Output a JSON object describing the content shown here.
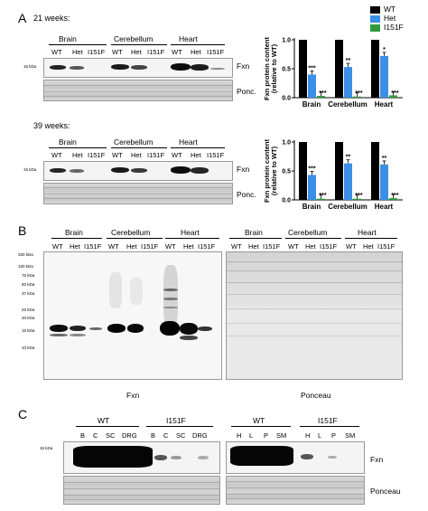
{
  "panelA": {
    "letter": "A",
    "sub1": "21 weeks:",
    "sub2": "39 weeks:",
    "tissues": [
      "Brain",
      "Cerebellum",
      "Heart"
    ],
    "lanes": [
      "WT",
      "Het",
      "I151F"
    ],
    "kda_marker": "15 kDa",
    "fxn_label": "Fxn",
    "ponc_label": "Ponc."
  },
  "legend": [
    {
      "name": "WT",
      "color": "#000000"
    },
    {
      "name": "Het",
      "color": "#3b8fe6"
    },
    {
      "name": "I151F",
      "color": "#2e9b3a"
    }
  ],
  "chart_data": [
    {
      "type": "bar",
      "title": "",
      "ylabel": "Fxn protein content (relative to WT)",
      "xlabel": "",
      "categories": [
        "Brain",
        "Cerebellum",
        "Heart"
      ],
      "series": [
        {
          "name": "WT",
          "values": [
            1.0,
            1.0,
            1.0
          ],
          "sig": [
            "",
            "",
            ""
          ]
        },
        {
          "name": "Het",
          "values": [
            0.4,
            0.53,
            0.72
          ],
          "sig": [
            "***",
            "**",
            "*"
          ]
        },
        {
          "name": "I151F",
          "values": [
            0.03,
            0.02,
            0.04
          ],
          "sig": [
            "***",
            "***",
            "***"
          ]
        }
      ],
      "ylim": [
        0,
        1.0
      ],
      "yticks": [
        "0.0",
        "0.5",
        "1.0"
      ]
    },
    {
      "type": "bar",
      "title": "",
      "ylabel": "Fxn protein content (relative to WT)",
      "xlabel": "",
      "categories": [
        "Brain",
        "Cerebellum",
        "Heart"
      ],
      "series": [
        {
          "name": "WT",
          "values": [
            1.0,
            1.0,
            1.0
          ],
          "sig": [
            "",
            "",
            ""
          ]
        },
        {
          "name": "Het",
          "values": [
            0.43,
            0.63,
            0.61
          ],
          "sig": [
            "***",
            "**",
            "**"
          ]
        },
        {
          "name": "I151F",
          "values": [
            0.02,
            0.02,
            0.03
          ],
          "sig": [
            "***",
            "***",
            "***"
          ]
        }
      ],
      "ylim": [
        0,
        1.0
      ],
      "yticks": [
        "0.0",
        "0.5",
        "1.0"
      ]
    }
  ],
  "panelB": {
    "letter": "B",
    "tissues": [
      "Brain",
      "Cerebellum",
      "Heart"
    ],
    "lanes": [
      "WT",
      "Het",
      "I151F"
    ],
    "markers": [
      "250 kDa",
      "100 kDa",
      "75 kDa",
      "50 kDa",
      "37 kDa",
      "25 kDa",
      "20 kDa",
      "15 kDa",
      "10 kDa"
    ],
    "fxn_caption": "Fxn",
    "ponceau_caption": "Ponceau"
  },
  "panelC": {
    "letter": "C",
    "groups": [
      "WT",
      "I151F",
      "WT",
      "I151F"
    ],
    "lanes_left": [
      "B",
      "C",
      "SC",
      "DRG",
      "B",
      "C",
      "SC",
      "DRG"
    ],
    "lanes_right": [
      "H",
      "L",
      "P",
      "SM",
      "H",
      "L",
      "P",
      "SM"
    ],
    "kda_marker": "15 kDa",
    "fxn_label": "Fxn",
    "ponceau_label": "Ponceau"
  }
}
